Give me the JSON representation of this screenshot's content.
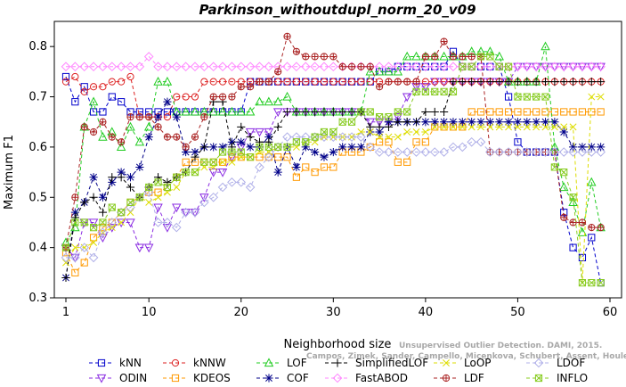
{
  "chart_data": {
    "type": "line",
    "title": "Parkinson_withoutdupl_norm_20_v09",
    "xlabel": "Neighborhood size",
    "ylabel": "Maximum F1",
    "xlim": [
      0,
      60
    ],
    "ylim": [
      0.3,
      0.85
    ],
    "x_ticks": [
      1,
      10,
      20,
      30,
      40,
      50,
      60
    ],
    "y_ticks": [
      0.3,
      0.4,
      0.5,
      0.6,
      0.7,
      0.8
    ],
    "grid": false,
    "legend_position": "bottom",
    "x": [
      1,
      2,
      3,
      4,
      5,
      6,
      7,
      8,
      9,
      10,
      11,
      12,
      13,
      14,
      15,
      16,
      17,
      18,
      19,
      20,
      21,
      22,
      23,
      24,
      25,
      26,
      27,
      28,
      29,
      30,
      31,
      32,
      33,
      34,
      35,
      36,
      37,
      38,
      39,
      40,
      41,
      42,
      43,
      44,
      45,
      46,
      47,
      48,
      49,
      50,
      51,
      52,
      53,
      54,
      55,
      56,
      57,
      58,
      59
    ],
    "series": [
      {
        "name": "kNN",
        "color": "#0000cc",
        "marker": "square",
        "values": [
          0.74,
          0.69,
          0.72,
          0.67,
          0.67,
          0.7,
          0.69,
          0.67,
          0.67,
          0.67,
          0.67,
          0.67,
          0.67,
          0.67,
          0.67,
          0.67,
          0.67,
          0.67,
          0.67,
          0.67,
          0.73,
          0.73,
          0.73,
          0.73,
          0.73,
          0.73,
          0.73,
          0.73,
          0.73,
          0.73,
          0.73,
          0.73,
          0.73,
          0.73,
          0.75,
          0.75,
          0.76,
          0.76,
          0.76,
          0.76,
          0.76,
          0.76,
          0.79,
          0.76,
          0.76,
          0.76,
          0.76,
          0.76,
          0.7,
          0.61,
          0.59,
          0.59,
          0.59,
          0.59,
          0.47,
          0.4,
          0.38,
          0.42,
          0.33
        ]
      },
      {
        "name": "ODIN",
        "color": "#8a2be2",
        "marker": "triangle-down",
        "values": [
          0.4,
          0.38,
          0.45,
          0.45,
          0.42,
          0.44,
          0.45,
          0.45,
          0.4,
          0.4,
          0.48,
          0.44,
          0.48,
          0.47,
          0.47,
          0.5,
          0.55,
          0.55,
          0.58,
          0.6,
          0.63,
          0.63,
          0.63,
          0.67,
          0.67,
          0.67,
          0.67,
          0.67,
          0.67,
          0.67,
          0.67,
          0.67,
          0.67,
          0.65,
          0.65,
          0.65,
          0.66,
          0.7,
          0.72,
          0.72,
          0.73,
          0.73,
          0.73,
          0.73,
          0.73,
          0.73,
          0.73,
          0.73,
          0.73,
          0.76,
          0.76,
          0.76,
          0.76,
          0.76,
          0.76,
          0.76,
          0.76,
          0.76,
          0.76
        ]
      },
      {
        "name": "kNNW",
        "color": "#dd2222",
        "marker": "circle",
        "values": [
          0.73,
          0.74,
          0.71,
          0.72,
          0.72,
          0.73,
          0.73,
          0.74,
          0.66,
          0.66,
          0.66,
          0.66,
          0.7,
          0.7,
          0.7,
          0.73,
          0.73,
          0.73,
          0.73,
          0.73,
          0.73,
          0.73,
          0.73,
          0.73,
          0.73,
          0.73,
          0.73,
          0.73,
          0.73,
          0.73,
          0.73,
          0.73,
          0.73,
          0.73,
          0.73,
          0.73,
          0.73,
          0.73,
          0.73,
          0.73,
          0.73,
          0.73,
          0.73,
          0.73,
          0.73,
          0.73,
          0.73,
          0.73,
          0.73,
          0.73,
          0.73,
          0.73,
          0.73,
          0.73,
          0.73,
          0.73,
          0.73,
          0.73,
          0.73
        ]
      },
      {
        "name": "KDEOS",
        "color": "#ff9900",
        "marker": "square",
        "values": [
          0.39,
          0.35,
          0.37,
          0.42,
          0.44,
          0.45,
          0.47,
          0.49,
          0.5,
          0.51,
          0.51,
          0.52,
          0.54,
          0.57,
          0.57,
          0.57,
          0.57,
          0.57,
          0.58,
          0.58,
          0.58,
          0.58,
          0.58,
          0.58,
          0.58,
          0.54,
          0.56,
          0.55,
          0.56,
          0.56,
          0.59,
          0.59,
          0.59,
          0.6,
          0.61,
          0.61,
          0.57,
          0.57,
          0.61,
          0.61,
          0.64,
          0.64,
          0.64,
          0.64,
          0.67,
          0.67,
          0.67,
          0.67,
          0.67,
          0.67,
          0.67,
          0.67,
          0.67,
          0.67,
          0.67,
          0.67,
          0.67,
          0.67,
          0.67
        ]
      },
      {
        "name": "LOF",
        "color": "#22cc22",
        "marker": "triangle-up",
        "values": [
          0.41,
          0.44,
          0.64,
          0.69,
          0.62,
          0.63,
          0.6,
          0.64,
          0.61,
          0.64,
          0.73,
          0.73,
          0.67,
          0.67,
          0.67,
          0.67,
          0.67,
          0.67,
          0.67,
          0.67,
          0.67,
          0.69,
          0.69,
          0.69,
          0.7,
          0.67,
          0.67,
          0.67,
          0.67,
          0.67,
          0.67,
          0.67,
          0.67,
          0.75,
          0.75,
          0.75,
          0.75,
          0.78,
          0.78,
          0.78,
          0.78,
          0.78,
          0.78,
          0.78,
          0.79,
          0.79,
          0.79,
          0.78,
          0.73,
          0.73,
          0.73,
          0.73,
          0.8,
          0.6,
          0.52,
          0.49,
          0.43,
          0.53,
          0.44
        ]
      },
      {
        "name": "COF",
        "color": "#000088",
        "marker": "star",
        "values": [
          0.34,
          0.47,
          0.49,
          0.54,
          0.5,
          0.53,
          0.55,
          0.54,
          0.56,
          0.62,
          0.66,
          0.69,
          0.66,
          0.59,
          0.59,
          0.6,
          0.6,
          0.6,
          0.61,
          0.61,
          0.6,
          0.6,
          0.62,
          0.55,
          0.6,
          0.56,
          0.6,
          0.59,
          0.58,
          0.59,
          0.6,
          0.6,
          0.6,
          0.63,
          0.63,
          0.65,
          0.65,
          0.65,
          0.65,
          0.65,
          0.65,
          0.65,
          0.65,
          0.65,
          0.65,
          0.65,
          0.65,
          0.65,
          0.65,
          0.65,
          0.65,
          0.65,
          0.65,
          0.65,
          0.63,
          0.6,
          0.6,
          0.6,
          0.6
        ]
      },
      {
        "name": "SimplifiedLOF",
        "color": "#000000",
        "marker": "plus",
        "values": [
          0.34,
          0.46,
          0.49,
          0.5,
          0.47,
          0.54,
          0.54,
          0.52,
          0.5,
          0.52,
          0.54,
          0.53,
          0.54,
          0.55,
          0.58,
          0.6,
          0.69,
          0.69,
          0.6,
          0.64,
          0.62,
          0.61,
          0.61,
          0.64,
          0.67,
          0.67,
          0.67,
          0.67,
          0.67,
          0.67,
          0.67,
          0.67,
          0.67,
          0.64,
          0.64,
          0.64,
          0.65,
          0.65,
          0.65,
          0.67,
          0.67,
          0.67,
          0.73,
          0.73,
          0.73,
          0.73,
          0.73,
          0.73,
          0.73,
          0.73,
          0.73,
          0.73,
          0.73,
          0.73,
          0.73,
          0.73,
          0.73,
          0.73,
          0.73
        ]
      },
      {
        "name": "FastABOD",
        "color": "#ff88ff",
        "marker": "diamond",
        "values": [
          0.76,
          0.76,
          0.76,
          0.76,
          0.76,
          0.76,
          0.76,
          0.76,
          0.76,
          0.78,
          0.76,
          0.76,
          0.76,
          0.76,
          0.76,
          0.76,
          0.76,
          0.76,
          0.76,
          0.76,
          0.76,
          0.76,
          0.76,
          0.76,
          0.76,
          0.76,
          0.76,
          0.76,
          0.76,
          0.76,
          0.76,
          0.76,
          0.76,
          0.76,
          0.76,
          0.76,
          0.76,
          0.76,
          0.76,
          0.76,
          0.76,
          0.76,
          0.76,
          0.76,
          0.76,
          0.76,
          0.76,
          0.76,
          0.76,
          0.76,
          0.76,
          0.76,
          0.76,
          0.76,
          0.76,
          0.76,
          0.76,
          0.76,
          0.76
        ]
      },
      {
        "name": "LoOP",
        "color": "#dddd00",
        "marker": "cross",
        "values": [
          0.37,
          0.4,
          0.4,
          0.41,
          0.43,
          0.44,
          0.45,
          0.47,
          0.5,
          0.49,
          0.5,
          0.51,
          0.52,
          0.55,
          0.55,
          0.56,
          0.56,
          0.57,
          0.57,
          0.58,
          0.58,
          0.59,
          0.59,
          0.6,
          0.6,
          0.6,
          0.61,
          0.61,
          0.62,
          0.62,
          0.62,
          0.62,
          0.63,
          0.63,
          0.62,
          0.62,
          0.62,
          0.63,
          0.63,
          0.63,
          0.64,
          0.64,
          0.64,
          0.64,
          0.64,
          0.64,
          0.64,
          0.64,
          0.64,
          0.64,
          0.64,
          0.64,
          0.64,
          0.64,
          0.64,
          0.64,
          0.33,
          0.7,
          0.7
        ]
      },
      {
        "name": "LDF",
        "color": "#aa2222",
        "marker": "circle-plus",
        "values": [
          0.4,
          0.5,
          0.64,
          0.63,
          0.65,
          0.62,
          0.61,
          0.66,
          0.66,
          0.66,
          0.64,
          0.62,
          0.62,
          0.6,
          0.62,
          0.66,
          0.7,
          0.7,
          0.7,
          0.72,
          0.72,
          0.73,
          0.73,
          0.75,
          0.82,
          0.79,
          0.78,
          0.78,
          0.78,
          0.78,
          0.76,
          0.76,
          0.76,
          0.76,
          0.72,
          0.73,
          0.73,
          0.73,
          0.73,
          0.78,
          0.78,
          0.81,
          0.78,
          0.78,
          0.78,
          0.78,
          0.59,
          0.59,
          0.59,
          0.59,
          0.59,
          0.59,
          0.59,
          0.59,
          0.46,
          0.45,
          0.45,
          0.44,
          0.44
        ]
      },
      {
        "name": "LDOF",
        "color": "#b0b0e8",
        "marker": "diamond",
        "values": [
          0.38,
          0.38,
          0.4,
          0.38,
          0.43,
          0.45,
          0.47,
          0.48,
          0.5,
          0.51,
          0.45,
          0.45,
          0.44,
          0.47,
          0.47,
          0.49,
          0.5,
          0.52,
          0.53,
          0.53,
          0.52,
          0.56,
          0.58,
          0.6,
          0.62,
          0.62,
          0.62,
          0.62,
          0.62,
          0.62,
          0.62,
          0.62,
          0.62,
          0.6,
          0.59,
          0.59,
          0.59,
          0.59,
          0.59,
          0.59,
          0.59,
          0.59,
          0.6,
          0.6,
          0.61,
          0.61,
          0.59,
          0.59,
          0.59,
          0.59,
          0.59,
          0.59,
          0.59,
          0.59,
          0.59,
          0.59,
          0.59,
          0.59,
          0.59
        ]
      },
      {
        "name": "INFLO",
        "color": "#88cc22",
        "marker": "square-x",
        "values": [
          0.4,
          0.45,
          0.45,
          0.44,
          0.45,
          0.48,
          0.47,
          0.49,
          0.5,
          0.52,
          0.53,
          0.52,
          0.54,
          0.55,
          0.55,
          0.57,
          0.57,
          0.59,
          0.59,
          0.59,
          0.58,
          0.6,
          0.6,
          0.6,
          0.6,
          0.61,
          0.61,
          0.62,
          0.63,
          0.63,
          0.65,
          0.65,
          0.67,
          0.67,
          0.66,
          0.66,
          0.67,
          0.67,
          0.71,
          0.71,
          0.71,
          0.71,
          0.71,
          0.76,
          0.76,
          0.78,
          0.78,
          0.76,
          0.76,
          0.7,
          0.7,
          0.7,
          0.7,
          0.56,
          0.55,
          0.5,
          0.33,
          0.33,
          0.33
        ]
      }
    ]
  },
  "watermark": {
    "line1": "Unsupervised Outlier Detection. DAMI, 2015.",
    "line2": "Campos, Zimek, Sander, Campello, Micenkova, Schubert, Assent, Houle"
  }
}
